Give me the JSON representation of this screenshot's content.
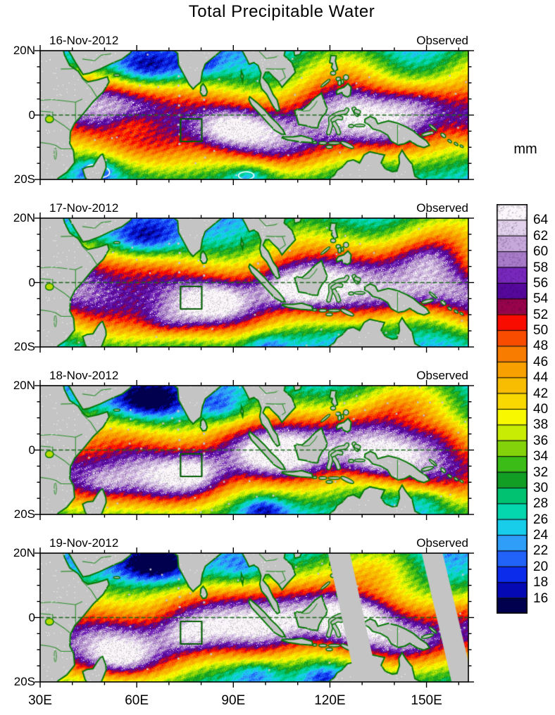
{
  "title": "Total Precipitable Water",
  "panels": [
    {
      "date": "16-Nov-2012",
      "source": "Observed",
      "has_missing_swaths": false
    },
    {
      "date": "17-Nov-2012",
      "source": "Observed",
      "has_missing_swaths": false
    },
    {
      "date": "18-Nov-2012",
      "source": "Observed",
      "has_missing_swaths": false
    },
    {
      "date": "19-Nov-2012",
      "source": "Observed",
      "has_missing_swaths": true
    }
  ],
  "axes": {
    "x_tick_labels": [
      "30E",
      "60E",
      "90E",
      "120E",
      "150E"
    ],
    "x_tick_lons": [
      30,
      60,
      90,
      120,
      150
    ],
    "y_tick_labels": [
      "20N",
      "0",
      "20S"
    ],
    "y_tick_lats": [
      20,
      0,
      -20
    ],
    "lon_range": [
      30,
      163
    ],
    "lat_range": [
      -20,
      20
    ]
  },
  "colorbar": {
    "unit": "mm",
    "tick_labels": [
      "64",
      "62",
      "60",
      "58",
      "56",
      "54",
      "52",
      "50",
      "48",
      "46",
      "44",
      "42",
      "40",
      "38",
      "36",
      "34",
      "32",
      "30",
      "28",
      "26",
      "24",
      "22",
      "20",
      "18",
      "16"
    ],
    "cell_colors_low_to_high": [
      "#00004e",
      "#0409b4",
      "#0c2cec",
      "#2162f8",
      "#2f9ef8",
      "#18cdea",
      "#04d6ae",
      "#00c270",
      "#129e24",
      "#3cbc16",
      "#84d20a",
      "#c8ec04",
      "#f8f800",
      "#f8d800",
      "#f8bc00",
      "#f8a000",
      "#f87c00",
      "#f84c00",
      "#f80c00",
      "#98044c",
      "#56089c",
      "#7828bc",
      "#a87cc8",
      "#c6a8da",
      "#e2d2ec",
      "#faf6fa"
    ]
  },
  "map": {
    "land_color": "#c4c4c4",
    "coast_color": "#067806",
    "border_color": "#2d8f2d",
    "equator_line_color": "#1a661a",
    "roi_box": {
      "lon_min": 73.6,
      "lon_max": 80.2,
      "lat_min": -8.2,
      "lat_max": -1.2,
      "color": "#045c04"
    },
    "missing_swath_color": "#c4c4c4"
  }
}
